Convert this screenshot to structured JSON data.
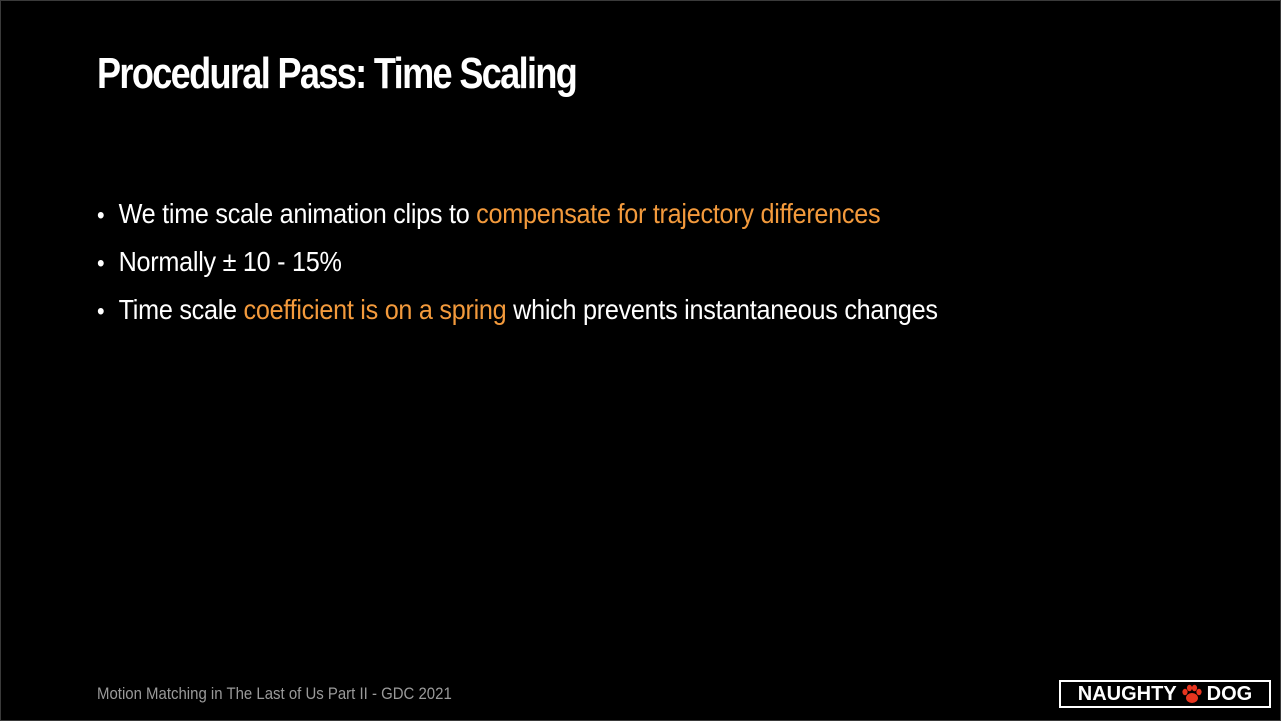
{
  "slide": {
    "title": "Procedural Pass: Time Scaling",
    "bullets": [
      {
        "segments": [
          {
            "text": "We time scale animation clips to ",
            "accent": false
          },
          {
            "text": "compensate for trajectory differences",
            "accent": true
          }
        ]
      },
      {
        "segments": [
          {
            "text": "Normally ± 10 - 15%",
            "accent": false
          }
        ]
      },
      {
        "segments": [
          {
            "text": "Time scale ",
            "accent": false
          },
          {
            "text": "coefficient is on a spring",
            "accent": true
          },
          {
            "text": " which prevents instantaneous changes",
            "accent": false
          }
        ]
      }
    ],
    "bullet_glyph": "•",
    "footer": "Motion Matching in The Last of Us Part II - GDC 2021",
    "logo": {
      "left_text": "NAUGHTY",
      "right_text": "DOG",
      "icon": "paw-icon"
    }
  },
  "colors": {
    "background": "#000000",
    "text": "#ffffff",
    "accent": "#f39a3c",
    "footer": "#9a9a9a",
    "logo_paw": "#e8351f"
  }
}
